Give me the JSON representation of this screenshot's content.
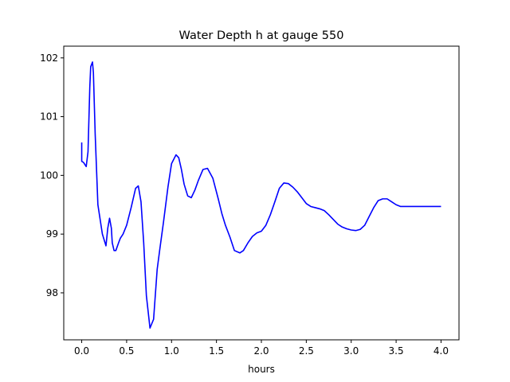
{
  "chart_data": {
    "type": "line",
    "title": "Water Depth h at gauge 550",
    "xlabel": "hours",
    "ylabel": "",
    "xlim": [
      -0.2,
      4.2
    ],
    "ylim": [
      97.2,
      102.2
    ],
    "xticks": [
      0.0,
      0.5,
      1.0,
      1.5,
      2.0,
      2.5,
      3.0,
      3.5,
      4.0
    ],
    "xtick_labels": [
      "0.0",
      "0.5",
      "1.0",
      "1.5",
      "2.0",
      "2.5",
      "3.0",
      "3.5",
      "4.0"
    ],
    "yticks": [
      98,
      99,
      100,
      101,
      102
    ],
    "ytick_labels": [
      "98",
      "99",
      "100",
      "101",
      "102"
    ],
    "grid": false,
    "series": [
      {
        "color": "#0000ff",
        "x": [
          0.0,
          0.0,
          0.02,
          0.05,
          0.07,
          0.09,
          0.1,
          0.12,
          0.13,
          0.15,
          0.18,
          0.2,
          0.23,
          0.27,
          0.29,
          0.31,
          0.33,
          0.34,
          0.36,
          0.38,
          0.41,
          0.43,
          0.46,
          0.5,
          0.55,
          0.6,
          0.63,
          0.66,
          0.69,
          0.72,
          0.76,
          0.8,
          0.84,
          0.87,
          0.91,
          0.96,
          1.0,
          1.05,
          1.08,
          1.11,
          1.14,
          1.18,
          1.22,
          1.26,
          1.3,
          1.35,
          1.4,
          1.46,
          1.52,
          1.56,
          1.6,
          1.65,
          1.7,
          1.76,
          1.8,
          1.85,
          1.9,
          1.95,
          2.0,
          2.05,
          2.1,
          2.15,
          2.2,
          2.25,
          2.3,
          2.35,
          2.4,
          2.45,
          2.5,
          2.55,
          2.6,
          2.65,
          2.7,
          2.75,
          2.8,
          2.85,
          2.9,
          2.95,
          3.0,
          3.05,
          3.1,
          3.15,
          3.2,
          3.25,
          3.3,
          3.35,
          3.4,
          3.45,
          3.5,
          3.55,
          3.6,
          3.7,
          3.8,
          3.9,
          4.0
        ],
        "values": [
          100.56,
          100.24,
          100.22,
          100.15,
          100.4,
          101.5,
          101.85,
          101.93,
          101.75,
          100.7,
          99.5,
          99.3,
          99.0,
          98.8,
          99.1,
          99.27,
          99.1,
          98.85,
          98.72,
          98.72,
          98.85,
          98.93,
          99.0,
          99.15,
          99.45,
          99.78,
          99.82,
          99.55,
          98.85,
          97.95,
          97.4,
          97.55,
          98.4,
          98.75,
          99.2,
          99.8,
          100.2,
          100.35,
          100.3,
          100.1,
          99.85,
          99.65,
          99.62,
          99.75,
          99.92,
          100.1,
          100.12,
          99.95,
          99.6,
          99.35,
          99.15,
          98.95,
          98.72,
          98.68,
          98.72,
          98.85,
          98.96,
          99.02,
          99.05,
          99.15,
          99.33,
          99.55,
          99.78,
          99.87,
          99.86,
          99.8,
          99.72,
          99.62,
          99.52,
          99.47,
          99.45,
          99.43,
          99.4,
          99.33,
          99.25,
          99.17,
          99.12,
          99.09,
          99.07,
          99.06,
          99.08,
          99.15,
          99.3,
          99.45,
          99.57,
          99.6,
          99.6,
          99.55,
          99.5,
          99.47,
          99.47,
          99.47,
          99.47,
          99.47,
          99.47
        ]
      }
    ]
  }
}
